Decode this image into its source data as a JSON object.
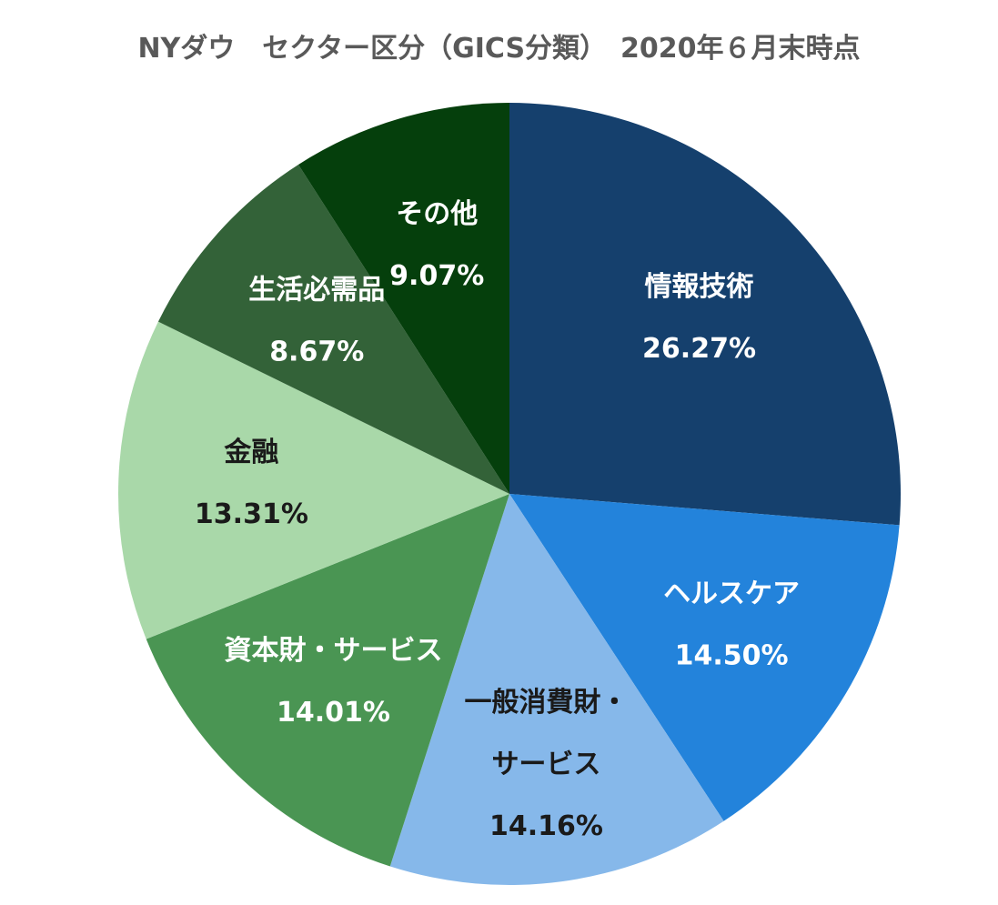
{
  "chart_data": {
    "type": "pie",
    "title": "NYダウ　セクター区分（GICS分類）　2020年６月末時点",
    "start": "top",
    "direction": "clockwise",
    "slices": [
      {
        "label": "情報技術",
        "label_lines": [
          "情報技術"
        ],
        "value": 26.27,
        "value_label": "26.27%",
        "color": "#15406D",
        "text_color": "#FFFFFF"
      },
      {
        "label": "ヘルスケア",
        "label_lines": [
          "ヘルスケア"
        ],
        "value": 14.5,
        "value_label": "14.50%",
        "color": "#2383DB",
        "text_color": "#FFFFFF"
      },
      {
        "label": "一般消費財・サービス",
        "label_lines": [
          "一般消費財・",
          "サービス"
        ],
        "value": 14.16,
        "value_label": "14.16%",
        "color": "#86B8EA",
        "text_color": "#1A1A1A"
      },
      {
        "label": "資本財・サービス",
        "label_lines": [
          "資本財・サービス"
        ],
        "value": 14.01,
        "value_label": "14.01%",
        "color": "#4A9553",
        "text_color": "#FFFFFF"
      },
      {
        "label": "金融",
        "label_lines": [
          "金融"
        ],
        "value": 13.31,
        "value_label": "13.31%",
        "color": "#A9D8A9",
        "text_color": "#1A1A1A"
      },
      {
        "label": "生活必需品",
        "label_lines": [
          "生活必需品"
        ],
        "value": 8.67,
        "value_label": "8.67%",
        "color": "#336238",
        "text_color": "#FFFFFF"
      },
      {
        "label": "その他",
        "label_lines": [
          "その他"
        ],
        "value": 9.07,
        "value_label": "9.07%",
        "color": "#053F0C",
        "text_color": "#FFFFFF"
      }
    ],
    "legend": "none"
  }
}
